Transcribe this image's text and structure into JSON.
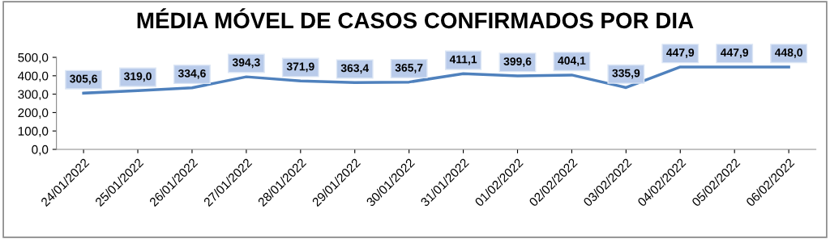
{
  "chart_data": {
    "type": "line",
    "title": "MÉDIA MÓVEL DE CASOS CONFIRMADOS POR DIA",
    "categories": [
      "24/01/2022",
      "25/01/2022",
      "26/01/2022",
      "27/01/2022",
      "28/01/2022",
      "29/01/2022",
      "30/01/2022",
      "31/01/2022",
      "01/02/2022",
      "02/02/2022",
      "03/02/2022",
      "04/02/2022",
      "05/02/2022",
      "06/02/2022"
    ],
    "series": [
      {
        "color": "#4f81bd",
        "values": [
          305.6,
          319.0,
          334.6,
          394.3,
          371.9,
          363.4,
          365.7,
          411.1,
          399.6,
          404.1,
          335.9,
          447.9,
          447.9,
          448.0
        ],
        "value_labels": [
          "305,6",
          "319,0",
          "334,6",
          "394,3",
          "371,9",
          "363,4",
          "365,7",
          "411,1",
          "399,6",
          "404,1",
          "335,9",
          "447,9",
          "447,9",
          "448,0"
        ]
      }
    ],
    "ylim": [
      0,
      500
    ],
    "yticks": [
      {
        "value": 0,
        "label": "0,0"
      },
      {
        "value": 100,
        "label": "100,0"
      },
      {
        "value": 200,
        "label": "200,0"
      },
      {
        "value": 300,
        "label": "300,0"
      },
      {
        "value": 400,
        "label": "400,0"
      },
      {
        "value": 500,
        "label": "500,0"
      }
    ],
    "grid": false,
    "legend": false,
    "line_style": "solid"
  }
}
